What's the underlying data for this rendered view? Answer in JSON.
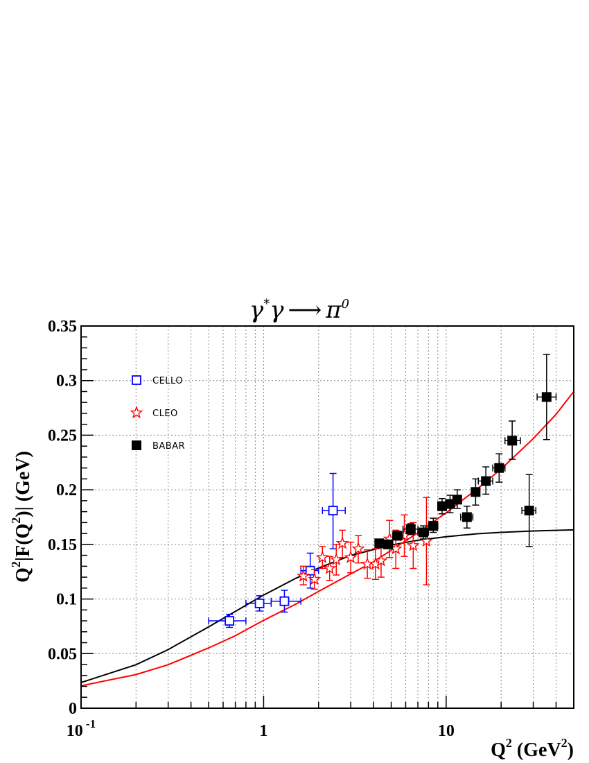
{
  "chart_data": {
    "type": "scatter",
    "title": {
      "gamma": "γ",
      "star": "*",
      "gamma2": "γ",
      "arrow": "⟶",
      "pi": "π",
      "zero": "0"
    },
    "xlabel": {
      "base": "Q",
      "exp": "2",
      "unit_open": " (GeV",
      "unit_exp": "2",
      "unit_close": ")"
    },
    "ylabel": {
      "q": "Q",
      "qexp": "2",
      "mid": "|F(Q",
      "mexp": "2",
      "tail": ")| (GeV)"
    },
    "xscale": "log",
    "xlim": [
      0.1,
      50
    ],
    "ylim": [
      0,
      0.35
    ],
    "grid": true,
    "legend_position": "top-left",
    "x_ticks": [
      {
        "value": 0.1,
        "base": "10",
        "exp": " -1"
      },
      {
        "value": 1,
        "base": "1",
        "exp": ""
      },
      {
        "value": 10,
        "base": "10",
        "exp": ""
      }
    ],
    "y_ticks": [
      {
        "value": 0,
        "label": "0"
      },
      {
        "value": 0.05,
        "label": "0.05"
      },
      {
        "value": 0.1,
        "label": "0.1"
      },
      {
        "value": 0.15,
        "label": "0.15"
      },
      {
        "value": 0.2,
        "label": "0.2"
      },
      {
        "value": 0.25,
        "label": "0.25"
      },
      {
        "value": 0.3,
        "label": "0.3"
      },
      {
        "value": 0.35,
        "label": "0.35"
      }
    ],
    "series": [
      {
        "name": "CELLO",
        "marker": "open-square",
        "color": "#0000ff",
        "points": [
          {
            "x": 0.65,
            "y": 0.08,
            "xlo": 0.5,
            "xhi": 0.8,
            "ylo": 0.074,
            "yhi": 0.086
          },
          {
            "x": 0.95,
            "y": 0.096,
            "xlo": 0.8,
            "xhi": 1.1,
            "ylo": 0.089,
            "yhi": 0.103
          },
          {
            "x": 1.3,
            "y": 0.098,
            "xlo": 1.1,
            "xhi": 1.6,
            "ylo": 0.088,
            "yhi": 0.108
          },
          {
            "x": 1.8,
            "y": 0.126,
            "xlo": 1.6,
            "xhi": 2.0,
            "ylo": 0.11,
            "yhi": 0.142
          },
          {
            "x": 2.4,
            "y": 0.181,
            "xlo": 2.1,
            "xhi": 2.8,
            "ylo": 0.146,
            "yhi": 0.215
          }
        ]
      },
      {
        "name": "CLEO",
        "marker": "open-star",
        "color": "#ff0000",
        "points": [
          {
            "x": 1.65,
            "y": 0.121,
            "ylo": 0.113,
            "yhi": 0.13
          },
          {
            "x": 1.9,
            "y": 0.118,
            "ylo": 0.109,
            "yhi": 0.127
          },
          {
            "x": 2.1,
            "y": 0.138,
            "ylo": 0.128,
            "yhi": 0.148
          },
          {
            "x": 2.3,
            "y": 0.128,
            "ylo": 0.117,
            "yhi": 0.139
          },
          {
            "x": 2.5,
            "y": 0.136,
            "ylo": 0.122,
            "yhi": 0.15
          },
          {
            "x": 2.7,
            "y": 0.151,
            "ylo": 0.138,
            "yhi": 0.163
          },
          {
            "x": 3.0,
            "y": 0.138,
            "ylo": 0.124,
            "yhi": 0.152
          },
          {
            "x": 3.3,
            "y": 0.146,
            "ylo": 0.133,
            "yhi": 0.158
          },
          {
            "x": 3.7,
            "y": 0.132,
            "ylo": 0.119,
            "yhi": 0.145
          },
          {
            "x": 4.1,
            "y": 0.132,
            "ylo": 0.118,
            "yhi": 0.146
          },
          {
            "x": 4.4,
            "y": 0.135,
            "ylo": 0.12,
            "yhi": 0.15
          },
          {
            "x": 4.9,
            "y": 0.155,
            "ylo": 0.138,
            "yhi": 0.172
          },
          {
            "x": 5.3,
            "y": 0.146,
            "ylo": 0.128,
            "yhi": 0.163
          },
          {
            "x": 5.9,
            "y": 0.158,
            "ylo": 0.139,
            "yhi": 0.177
          },
          {
            "x": 6.6,
            "y": 0.149,
            "ylo": 0.128,
            "yhi": 0.17
          },
          {
            "x": 7.8,
            "y": 0.153,
            "ylo": 0.113,
            "yhi": 0.193
          }
        ]
      },
      {
        "name": "BABAR",
        "marker": "filled-square",
        "color": "#000000",
        "points": [
          {
            "x": 4.3,
            "y": 0.151,
            "xlo": 4.1,
            "xhi": 4.5,
            "ylo": 0.148,
            "yhi": 0.154
          },
          {
            "x": 4.8,
            "y": 0.15,
            "xlo": 4.5,
            "xhi": 5.1,
            "ylo": 0.147,
            "yhi": 0.153
          },
          {
            "x": 5.4,
            "y": 0.158,
            "xlo": 5.1,
            "xhi": 5.8,
            "ylo": 0.154,
            "yhi": 0.162
          },
          {
            "x": 6.4,
            "y": 0.164,
            "xlo": 5.8,
            "xhi": 7.0,
            "ylo": 0.159,
            "yhi": 0.169
          },
          {
            "x": 7.5,
            "y": 0.161,
            "xlo": 7.0,
            "xhi": 8.0,
            "ylo": 0.155,
            "yhi": 0.167
          },
          {
            "x": 8.5,
            "y": 0.167,
            "xlo": 8.0,
            "xhi": 9.0,
            "ylo": 0.161,
            "yhi": 0.174
          },
          {
            "x": 9.5,
            "y": 0.185,
            "xlo": 9.0,
            "xhi": 10.0,
            "ylo": 0.178,
            "yhi": 0.192
          },
          {
            "x": 10.5,
            "y": 0.187,
            "xlo": 10.0,
            "xhi": 11.0,
            "ylo": 0.179,
            "yhi": 0.195
          },
          {
            "x": 11.5,
            "y": 0.191,
            "xlo": 11.0,
            "xhi": 12.0,
            "ylo": 0.183,
            "yhi": 0.2
          },
          {
            "x": 13.0,
            "y": 0.175,
            "xlo": 12.0,
            "xhi": 14.0,
            "ylo": 0.165,
            "yhi": 0.185
          },
          {
            "x": 14.5,
            "y": 0.198,
            "xlo": 14.0,
            "xhi": 15.0,
            "ylo": 0.186,
            "yhi": 0.21
          },
          {
            "x": 16.5,
            "y": 0.208,
            "xlo": 15.0,
            "xhi": 18.0,
            "ylo": 0.196,
            "yhi": 0.221
          },
          {
            "x": 19.5,
            "y": 0.22,
            "xlo": 18.0,
            "xhi": 21.0,
            "ylo": 0.207,
            "yhi": 0.233
          },
          {
            "x": 23.0,
            "y": 0.245,
            "xlo": 21.0,
            "xhi": 25.5,
            "ylo": 0.228,
            "yhi": 0.263
          },
          {
            "x": 28.5,
            "y": 0.181,
            "xlo": 26.0,
            "xhi": 31.0,
            "ylo": 0.148,
            "yhi": 0.214
          },
          {
            "x": 35.5,
            "y": 0.285,
            "xlo": 31.5,
            "xhi": 40.0,
            "ylo": 0.246,
            "yhi": 0.324
          }
        ]
      }
    ],
    "curves": [
      {
        "color": "#000000",
        "points": [
          [
            0.1,
            0.0235
          ],
          [
            0.2,
            0.0398
          ],
          [
            0.3,
            0.0537
          ],
          [
            0.5,
            0.0745
          ],
          [
            0.7,
            0.0886
          ],
          [
            1,
            0.1036
          ],
          [
            1.5,
            0.1189
          ],
          [
            2,
            0.1284
          ],
          [
            3,
            0.1399
          ],
          [
            5,
            0.1494
          ],
          [
            7,
            0.1538
          ],
          [
            10,
            0.1571
          ],
          [
            15,
            0.1598
          ],
          [
            20,
            0.161
          ],
          [
            30,
            0.1623
          ],
          [
            50,
            0.1633
          ]
        ]
      },
      {
        "color": "#ff0000",
        "points": [
          [
            0.1,
            0.0205
          ],
          [
            0.2,
            0.0308
          ],
          [
            0.3,
            0.0398
          ],
          [
            0.5,
            0.0552
          ],
          [
            0.7,
            0.0664
          ],
          [
            1,
            0.0805
          ],
          [
            1.5,
            0.0953
          ],
          [
            2,
            0.107
          ],
          [
            3,
            0.123
          ],
          [
            4,
            0.134
          ],
          [
            5,
            0.1447
          ],
          [
            7,
            0.1606
          ],
          [
            10,
            0.179
          ],
          [
            15,
            0.2017
          ],
          [
            20,
            0.2191
          ],
          [
            30,
            0.2469
          ],
          [
            40,
            0.2692
          ],
          [
            50,
            0.29
          ]
        ]
      }
    ]
  }
}
